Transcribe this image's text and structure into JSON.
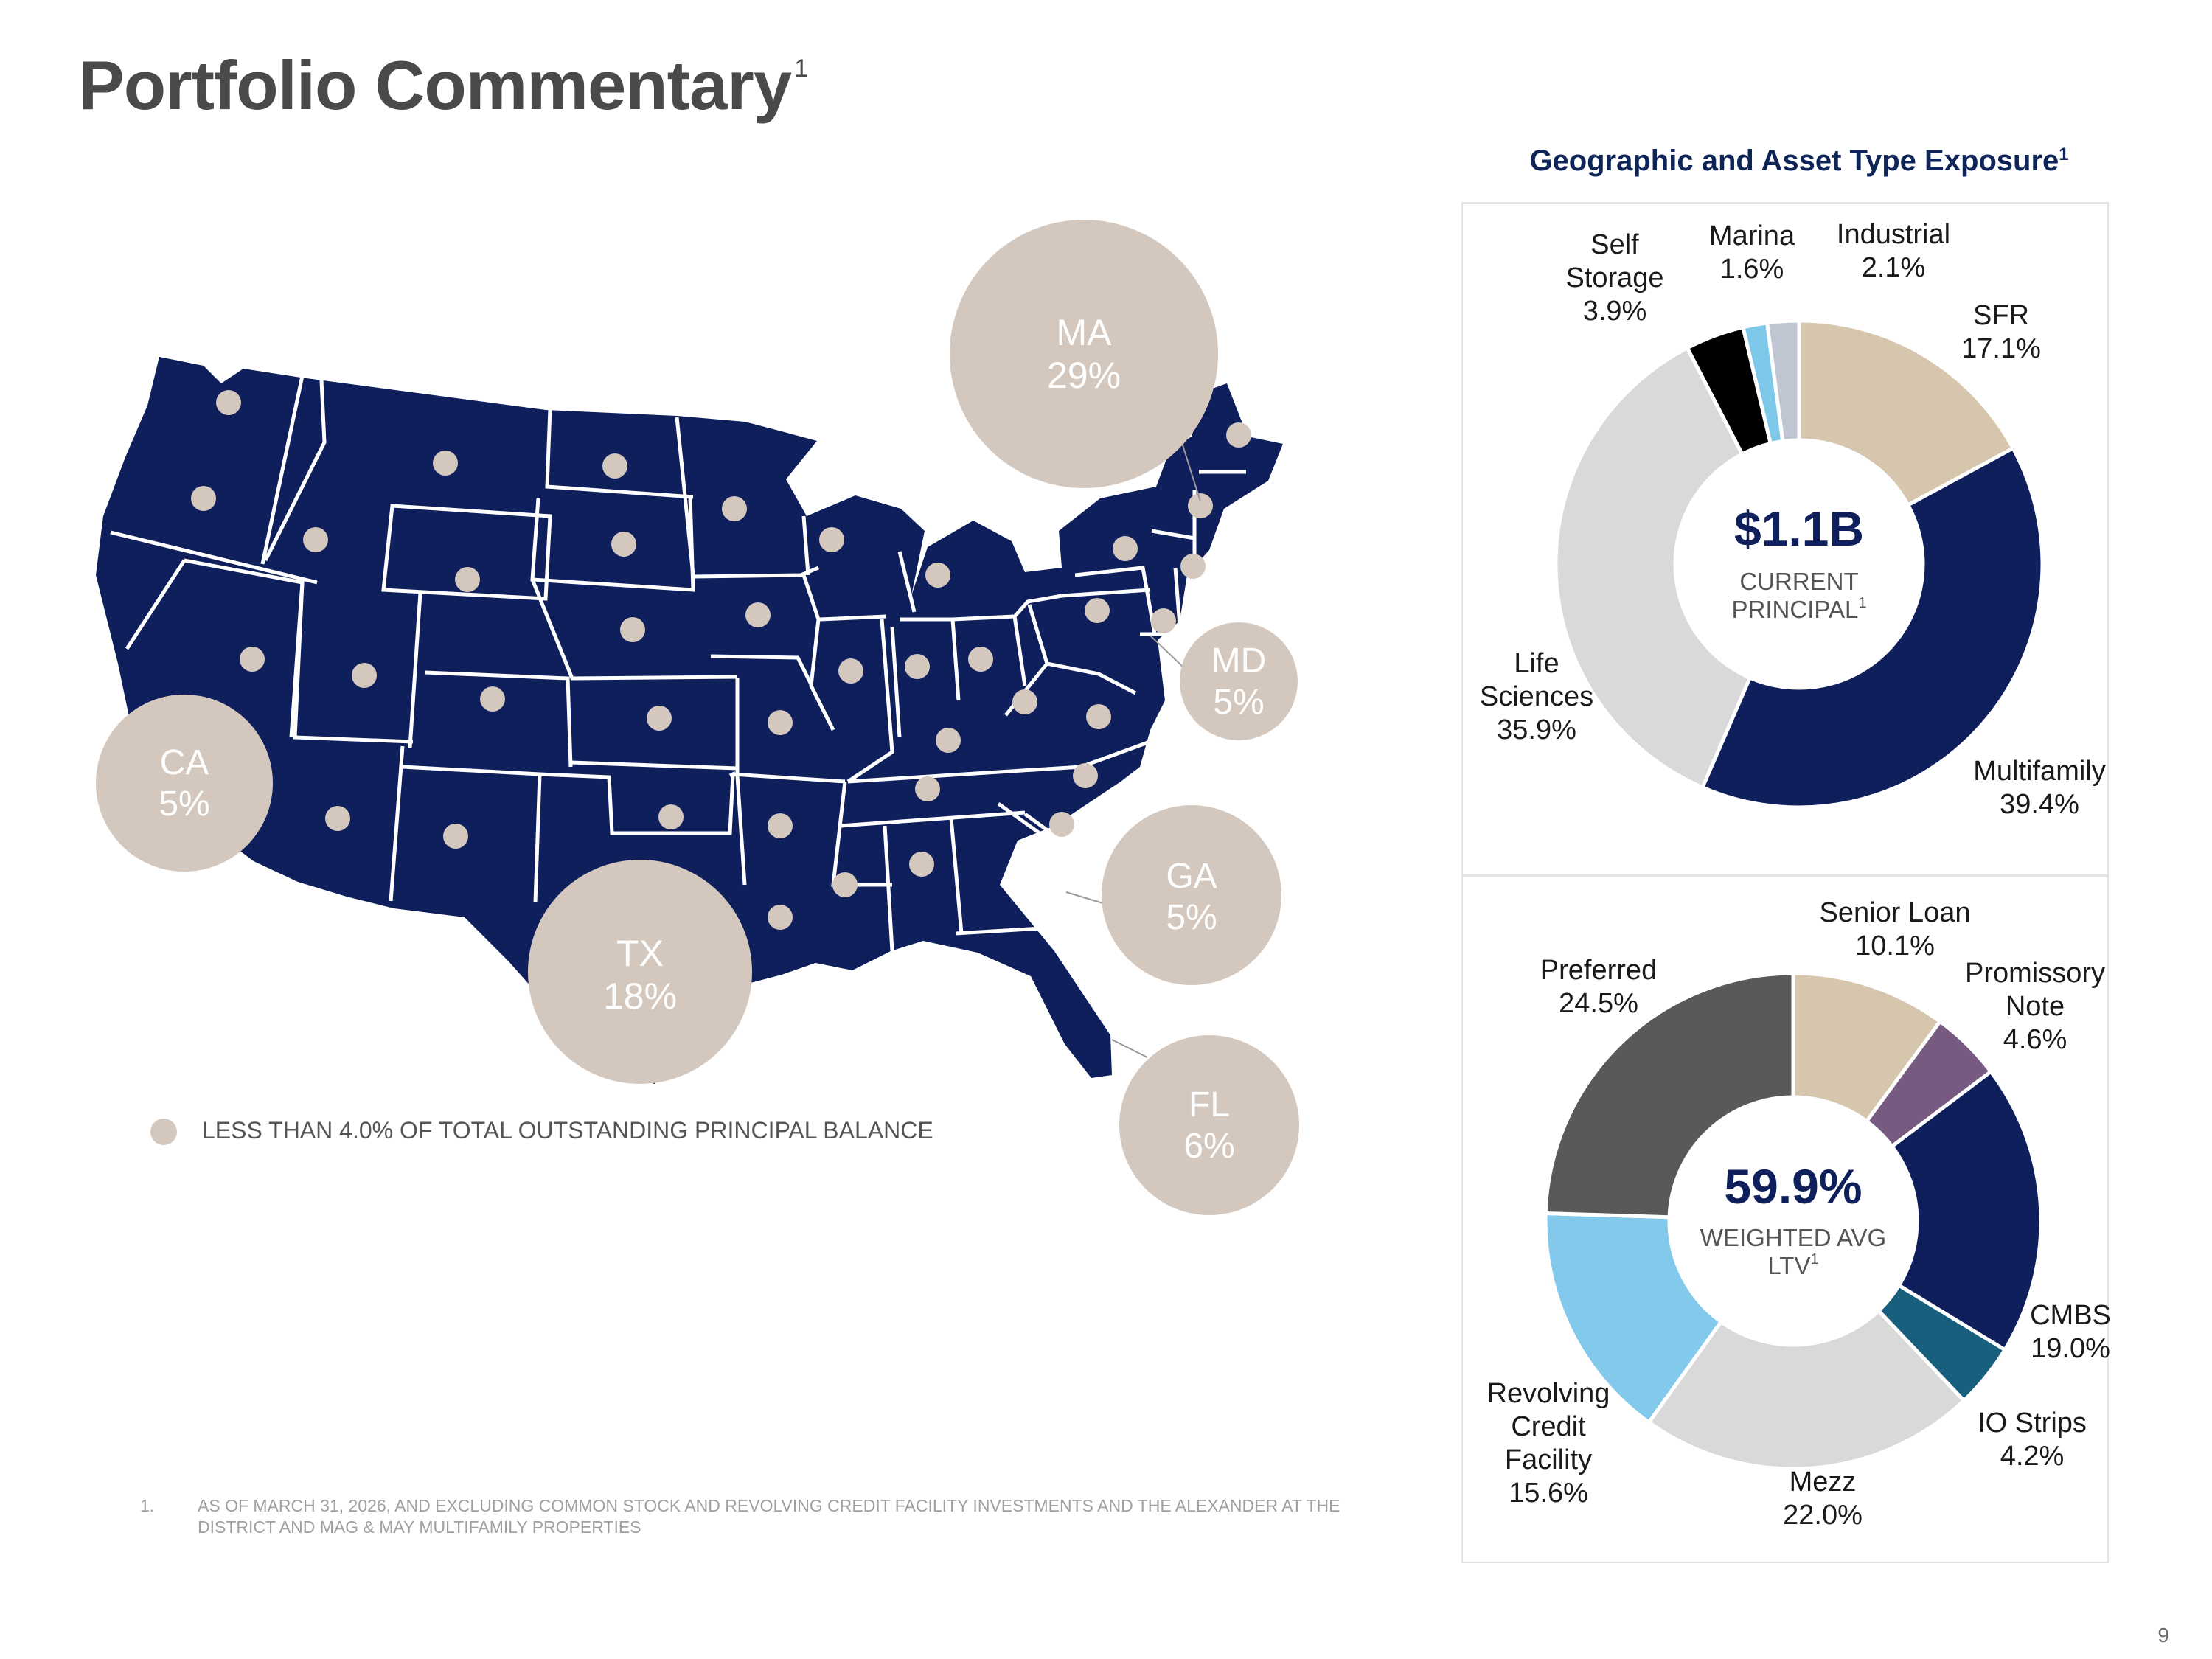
{
  "page": {
    "title": "Portfolio Commentary",
    "title_sup": "1",
    "panel_title": "Geographic and Asset Type Exposure",
    "panel_title_sup": "1",
    "page_number": "9",
    "footnote_number": "1.",
    "footnote_text": "AS OF MARCH 31, 2026, AND EXCLUDING COMMON STOCK AND REVOLVING CREDIT FACILITY INVESTMENTS AND THE ALEXANDER AT THE DISTRICT AND MAG & MAY MULTIFAMILY PROPERTIES"
  },
  "map": {
    "legend_text": "LESS THAN 4.0% OF TOTAL OUTSTANDING PRINCIPAL BALANCE",
    "bubbles": [
      {
        "state": "MA",
        "pct": "29%"
      },
      {
        "state": "MD",
        "pct": "5%"
      },
      {
        "state": "CA",
        "pct": "5%"
      },
      {
        "state": "TX",
        "pct": "18%"
      },
      {
        "state": "GA",
        "pct": "5%"
      },
      {
        "state": "FL",
        "pct": "6%"
      }
    ],
    "colors": {
      "land": "#0f1f5c",
      "bubble": "#d4c8be",
      "border": "#ffffff"
    }
  },
  "chart_data": [
    {
      "type": "pie",
      "subtype": "donut",
      "center_value": "$1.1B",
      "center_label_lines": [
        "CURRENT",
        "PRINCIPAL"
      ],
      "center_label_sup": "1",
      "slices": [
        {
          "label_lines": [
            "SFR"
          ],
          "value": 17.1,
          "value_label": "17.1%",
          "color": "#d6c6ad"
        },
        {
          "label_lines": [
            "Multifamily"
          ],
          "value": 39.4,
          "value_label": "39.4%",
          "color": "#0f1f5c"
        },
        {
          "label_lines": [
            "Life",
            "Sciences"
          ],
          "value": 35.9,
          "value_label": "35.9%",
          "color": "#d9d9d9"
        },
        {
          "label_lines": [
            "Self",
            "Storage"
          ],
          "value": 3.9,
          "value_label": "3.9%",
          "color": "#000000"
        },
        {
          "label_lines": [
            "Marina"
          ],
          "value": 1.6,
          "value_label": "1.6%",
          "color": "#7ec8ea"
        },
        {
          "label_lines": [
            "Industrial"
          ],
          "value": 2.1,
          "value_label": "2.1%",
          "color": "#bfc6d1"
        }
      ]
    },
    {
      "type": "pie",
      "subtype": "donut",
      "center_value": "59.9%",
      "center_label_lines": [
        "WEIGHTED AVG",
        "LTV"
      ],
      "center_label_sup": "1",
      "slices": [
        {
          "label_lines": [
            "Senior Loan"
          ],
          "value": 10.1,
          "value_label": "10.1%",
          "color": "#d6c6ad"
        },
        {
          "label_lines": [
            "Promissory",
            "Note"
          ],
          "value": 4.6,
          "value_label": "4.6%",
          "color": "#765a80"
        },
        {
          "label_lines": [
            "CMBS"
          ],
          "value": 19.0,
          "value_label": "19.0%",
          "color": "#0f1f5c"
        },
        {
          "label_lines": [
            "IO Strips"
          ],
          "value": 4.2,
          "value_label": "4.2%",
          "color": "#185f7e"
        },
        {
          "label_lines": [
            "Mezz"
          ],
          "value": 22.0,
          "value_label": "22.0%",
          "color": "#d9d9d9"
        },
        {
          "label_lines": [
            "Revolving",
            "Credit",
            "Facility"
          ],
          "value": 15.6,
          "value_label": "15.6%",
          "color": "#82c9ec"
        },
        {
          "label_lines": [
            "Preferred"
          ],
          "value": 24.5,
          "value_label": "24.5%",
          "color": "#595959"
        }
      ]
    }
  ]
}
